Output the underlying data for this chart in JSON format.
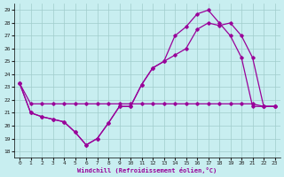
{
  "xlabel": "Windchill (Refroidissement éolien,°C)",
  "bg_color": "#c8eef0",
  "grid_color": "#a0cccc",
  "line_color": "#990099",
  "xlim": [
    -0.5,
    23.5
  ],
  "ylim": [
    17.5,
    29.5
  ],
  "xticks": [
    0,
    1,
    2,
    3,
    4,
    5,
    6,
    7,
    8,
    9,
    10,
    11,
    12,
    13,
    14,
    15,
    16,
    17,
    18,
    19,
    20,
    21,
    22,
    23
  ],
  "yticks": [
    18,
    19,
    20,
    21,
    22,
    23,
    24,
    25,
    26,
    27,
    28,
    29
  ],
  "series1_x": [
    0,
    1,
    2,
    3,
    4,
    5,
    6,
    7,
    8,
    9,
    10,
    11,
    12,
    13,
    14,
    15,
    16,
    17,
    18,
    19,
    20,
    21,
    22,
    23
  ],
  "series1_y": [
    23.3,
    21.7,
    21.7,
    21.7,
    21.7,
    21.7,
    21.7,
    21.7,
    21.7,
    21.7,
    21.7,
    21.7,
    21.7,
    21.7,
    21.7,
    21.7,
    21.7,
    21.7,
    21.7,
    21.7,
    21.7,
    21.7,
    21.5,
    21.5
  ],
  "series2_x": [
    0,
    1,
    2,
    3,
    4,
    5,
    6,
    7,
    8,
    9,
    10,
    11,
    12,
    13,
    14,
    15,
    16,
    17,
    18,
    19,
    20,
    21,
    22,
    23
  ],
  "series2_y": [
    23.3,
    21.0,
    20.7,
    20.5,
    20.3,
    19.5,
    18.5,
    19.0,
    20.2,
    21.5,
    21.5,
    23.2,
    24.5,
    25.0,
    27.0,
    27.7,
    28.7,
    29.0,
    28.0,
    27.0,
    25.3,
    21.5,
    21.5,
    21.5
  ],
  "series3_x": [
    0,
    1,
    2,
    3,
    4,
    5,
    6,
    7,
    8,
    9,
    10,
    11,
    12,
    13,
    14,
    15,
    16,
    17,
    18,
    19,
    20,
    21,
    22,
    23
  ],
  "series3_y": [
    23.3,
    21.0,
    20.7,
    20.5,
    20.3,
    19.5,
    18.5,
    19.0,
    20.2,
    21.5,
    21.5,
    23.2,
    24.5,
    25.0,
    25.5,
    26.0,
    27.5,
    28.0,
    27.8,
    28.0,
    27.0,
    25.3,
    21.5,
    21.5
  ]
}
